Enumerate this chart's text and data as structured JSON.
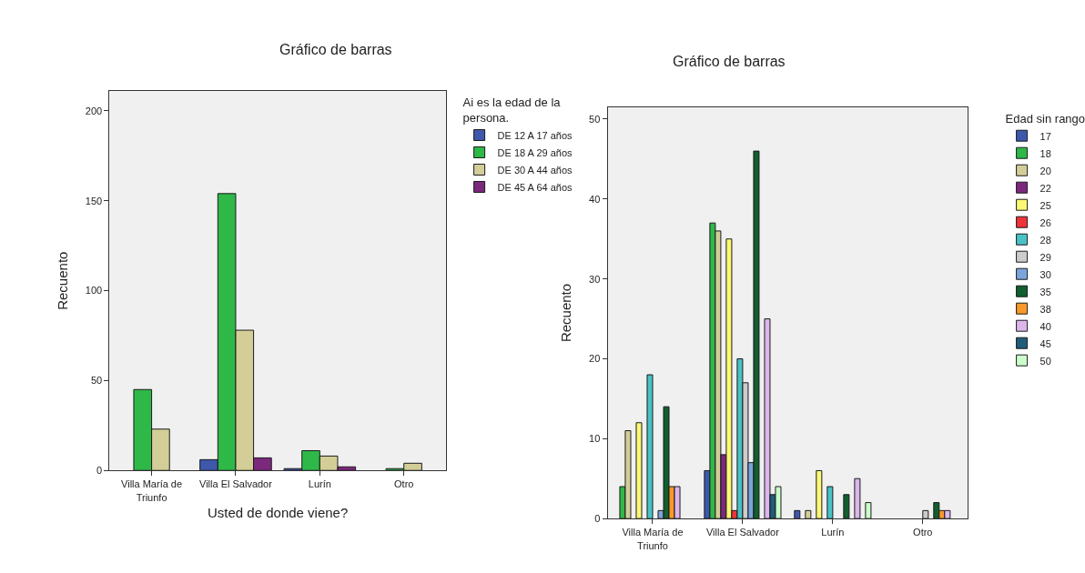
{
  "chart_data": [
    {
      "type": "bar",
      "title": "Gráfico de barras",
      "xlabel": "Usted de donde viene?",
      "ylabel": "Recuento",
      "legend_title": "Ai es la edad de la\npersona.",
      "legend": "right",
      "grid": false,
      "categories": [
        "Villa María de\nTriunfo",
        "Villa El Salvador",
        "Lurín",
        "Otro"
      ],
      "series": [
        {
          "name": "DE 12 A 17 años",
          "color": "#3e58ac",
          "values": [
            null,
            6,
            1,
            null
          ]
        },
        {
          "name": "DE 18 A 29 años",
          "color": "#2eb848",
          "values": [
            45,
            154,
            11,
            1
          ]
        },
        {
          "name": "DE 30 A 44 años",
          "color": "#d3ce97",
          "values": [
            23,
            78,
            8,
            4
          ]
        },
        {
          "name": "DE 45 A 64 años",
          "color": "#7c287d",
          "values": [
            null,
            7,
            2,
            null
          ]
        }
      ],
      "ylim": [
        0,
        211
      ],
      "yticks": [
        0,
        50,
        100,
        150,
        200
      ]
    },
    {
      "type": "bar",
      "title": "Gráfico de barras",
      "ylabel": "Recuento",
      "legend_title": "Edad sin rango",
      "legend": "right",
      "grid": false,
      "categories": [
        "Villa María de\nTriunfo",
        "Villa El Salvador",
        "Lurín",
        "Otro"
      ],
      "series": [
        {
          "name": "17",
          "color": "#3e58ac",
          "values": [
            null,
            6,
            1,
            null
          ]
        },
        {
          "name": "18",
          "color": "#2eb848",
          "values": [
            4,
            37,
            null,
            null
          ]
        },
        {
          "name": "20",
          "color": "#d3ce97",
          "values": [
            11,
            36,
            1,
            null
          ]
        },
        {
          "name": "22",
          "color": "#7c287d",
          "values": [
            null,
            8,
            null,
            null
          ]
        },
        {
          "name": "25",
          "color": "#fbf873",
          "values": [
            12,
            35,
            6,
            null
          ]
        },
        {
          "name": "26",
          "color": "#ef3338",
          "values": [
            null,
            1,
            null,
            null
          ]
        },
        {
          "name": "28",
          "color": "#48c2c5",
          "values": [
            18,
            20,
            4,
            null
          ]
        },
        {
          "name": "29",
          "color": "#cccccc",
          "values": [
            null,
            17,
            null,
            1
          ]
        },
        {
          "name": "30",
          "color": "#7ba4dd",
          "values": [
            1,
            7,
            null,
            null
          ]
        },
        {
          "name": "35",
          "color": "#115e2e",
          "values": [
            14,
            46,
            3,
            2
          ]
        },
        {
          "name": "38",
          "color": "#f9992a",
          "values": [
            4,
            null,
            null,
            1
          ]
        },
        {
          "name": "40",
          "color": "#ddb6ec",
          "values": [
            4,
            25,
            5,
            1
          ]
        },
        {
          "name": "45",
          "color": "#1f5d7b",
          "values": [
            null,
            3,
            null,
            null
          ]
        },
        {
          "name": "50",
          "color": "#cbfecb",
          "values": [
            null,
            4,
            2,
            null
          ]
        }
      ],
      "ylim": [
        0,
        51.5
      ],
      "yticks": [
        0,
        10,
        20,
        30,
        40,
        50
      ]
    }
  ]
}
